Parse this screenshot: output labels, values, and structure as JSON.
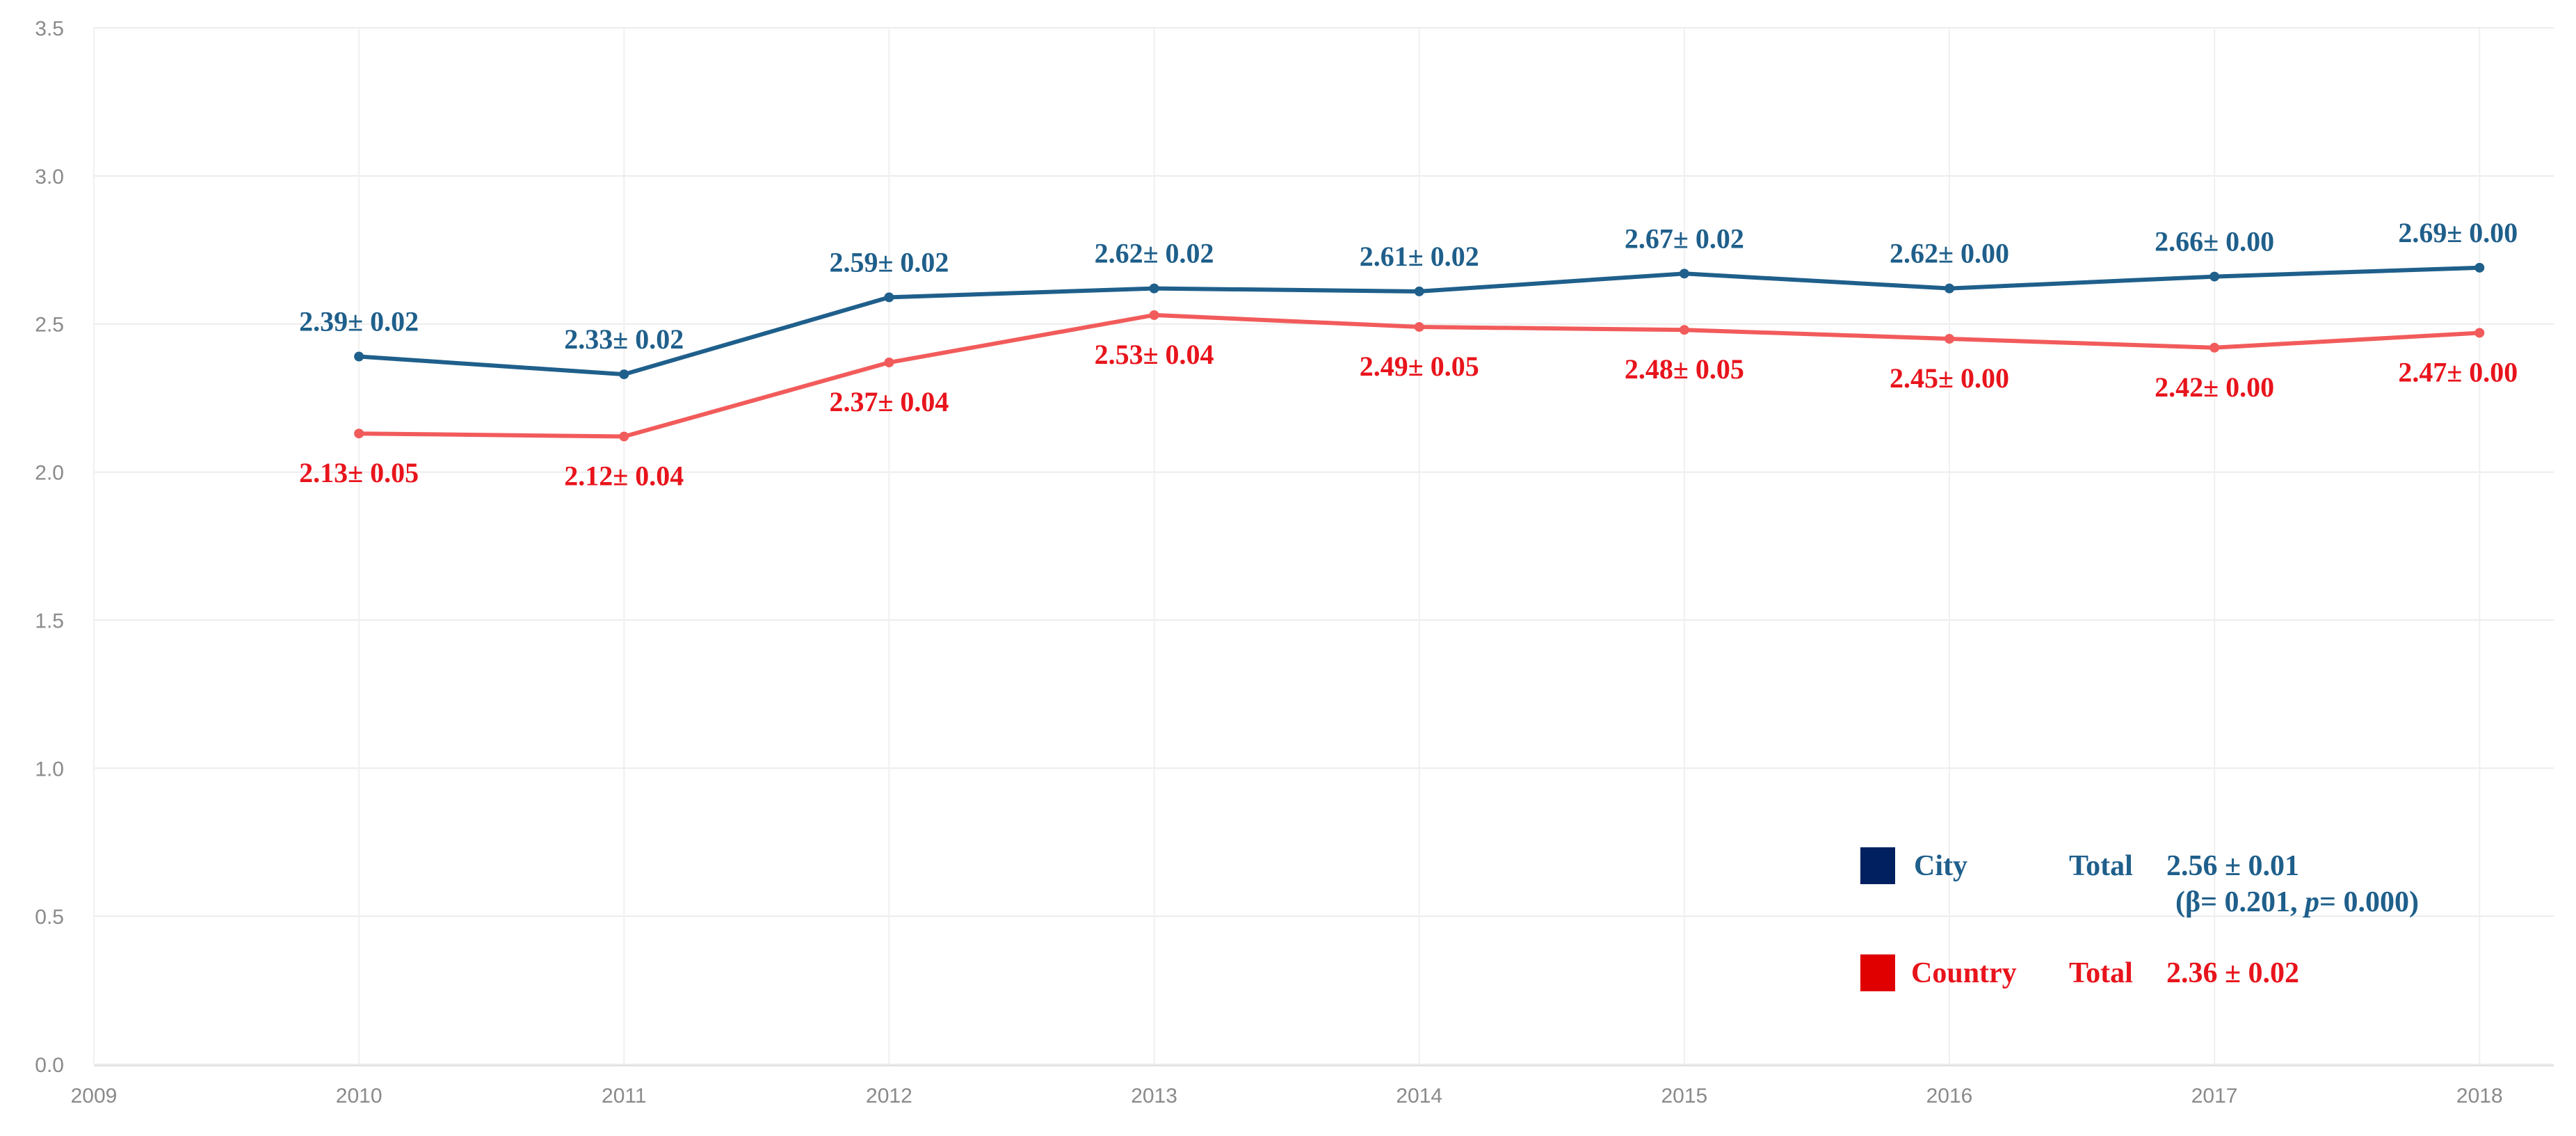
{
  "chart_data": {
    "type": "line",
    "title": "",
    "xlabel": "",
    "ylabel": "",
    "x_ticks": [
      "2009",
      "2010",
      "2011",
      "2012",
      "2013",
      "2014",
      "2015",
      "2016",
      "2017",
      "2018"
    ],
    "x": [
      2010,
      2011,
      2012,
      2013,
      2014,
      2015,
      2016,
      2017,
      2018
    ],
    "xlim": [
      2009,
      2018.28
    ],
    "ylim": [
      0,
      3.5
    ],
    "y_ticks": [
      "0.0",
      "0.5",
      "1.0",
      "1.5",
      "2.0",
      "2.5",
      "3.0",
      "3.5"
    ],
    "grid": true,
    "series": [
      {
        "name": "City",
        "color": "#1f5f8b",
        "values": [
          2.39,
          2.33,
          2.59,
          2.62,
          2.61,
          2.67,
          2.62,
          2.66,
          2.69
        ],
        "labels": [
          "2.39± 0.02",
          "2.33± 0.02",
          "2.59± 0.02",
          "2.62± 0.02",
          "2.61± 0.02",
          "2.67± 0.02",
          "2.62± 0.00",
          "2.66± 0.00",
          "2.69± 0.00"
        ],
        "label_position": "above"
      },
      {
        "name": "Country",
        "color": "#f25b5b",
        "label_color": "#e8141c",
        "values": [
          2.13,
          2.12,
          2.37,
          2.53,
          2.49,
          2.48,
          2.45,
          2.42,
          2.47
        ],
        "labels": [
          "2.13± 0.05",
          "2.12± 0.04",
          "2.37± 0.04",
          "2.53± 0.04",
          "2.49± 0.05",
          "2.48± 0.05",
          "2.45± 0.00",
          "2.42± 0.00",
          "2.47± 0.00"
        ],
        "label_position": "below"
      }
    ],
    "legend": {
      "position": "bottom-right",
      "entries": [
        {
          "name": "City",
          "swatch_color": "#002060",
          "text_color": "#1f5f8b",
          "total_label": "Total",
          "total_value": "2.56 ± 0.01",
          "stats_prefix": "(β= 0.201, ",
          "stats_p": "p",
          "stats_suffix": "= 0.000)"
        },
        {
          "name": "Country",
          "swatch_color": "#e00000",
          "text_color": "#e8141c",
          "total_label": "Total",
          "total_value": "2.36 ± 0.02"
        }
      ]
    }
  }
}
